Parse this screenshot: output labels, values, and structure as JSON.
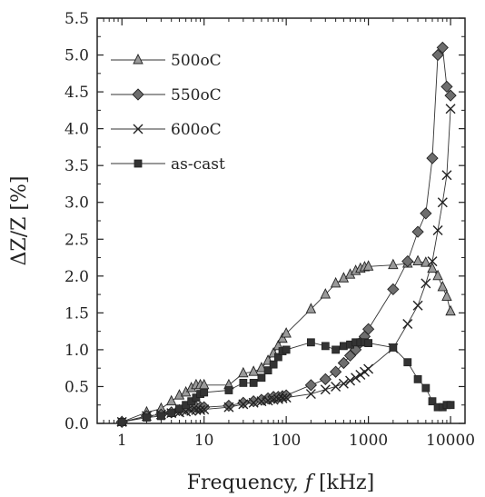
{
  "chart_data": {
    "type": "line",
    "title": "",
    "xlabel": "Frequency, f [kHz]",
    "xlabel_prefix": "Frequency, ",
    "xlabel_var": "f",
    "xlabel_unit": " [kHz]",
    "ylabel": "ΔZ/Z [%]",
    "xscale": "log",
    "xlim": [
      0.5,
      15000
    ],
    "ylim": [
      0.0,
      5.5
    ],
    "xticks": [
      1,
      10,
      100,
      1000,
      10000
    ],
    "xtick_labels": [
      "1",
      "10",
      "100",
      "1000",
      "10000"
    ],
    "yticks": [
      0.0,
      0.5,
      1.0,
      1.5,
      2.0,
      2.5,
      3.0,
      3.5,
      4.0,
      4.5,
      5.0,
      5.5
    ],
    "ytick_labels": [
      "0.0",
      "0.5",
      "1.0",
      "1.5",
      "2.0",
      "2.5",
      "3.0",
      "3.5",
      "4.0",
      "4.5",
      "5.0",
      "5.5"
    ],
    "grid": false,
    "legend_position": "top-left",
    "series": [
      {
        "name": "500°C",
        "legend_label": "500oC",
        "marker": "triangle",
        "x": [
          1,
          2,
          3,
          4,
          5,
          6,
          7,
          8,
          9,
          10,
          20,
          30,
          40,
          50,
          60,
          70,
          80,
          90,
          100,
          200,
          300,
          400,
          500,
          600,
          700,
          800,
          900,
          1000,
          2000,
          3000,
          4000,
          5000,
          6000,
          7000,
          8000,
          9000,
          10000
        ],
        "y": [
          0.02,
          0.15,
          0.2,
          0.3,
          0.38,
          0.42,
          0.48,
          0.52,
          0.52,
          0.52,
          0.52,
          0.68,
          0.7,
          0.75,
          0.85,
          0.95,
          1.05,
          1.15,
          1.22,
          1.55,
          1.75,
          1.9,
          1.97,
          2.02,
          2.07,
          2.1,
          2.12,
          2.13,
          2.15,
          2.17,
          2.2,
          2.18,
          2.1,
          2.0,
          1.85,
          1.72,
          1.52
        ]
      },
      {
        "name": "550°C",
        "legend_label": "550oC",
        "marker": "diamond",
        "x": [
          1,
          2,
          3,
          4,
          5,
          6,
          7,
          8,
          9,
          10,
          20,
          30,
          40,
          50,
          60,
          70,
          80,
          90,
          100,
          200,
          300,
          400,
          500,
          600,
          700,
          800,
          900,
          1000,
          2000,
          3000,
          4000,
          5000,
          6000,
          7000,
          8000,
          9000,
          10000
        ],
        "y": [
          0.02,
          0.1,
          0.12,
          0.15,
          0.18,
          0.2,
          0.22,
          0.22,
          0.22,
          0.22,
          0.24,
          0.28,
          0.3,
          0.32,
          0.34,
          0.36,
          0.36,
          0.37,
          0.38,
          0.52,
          0.6,
          0.7,
          0.82,
          0.92,
          1.0,
          1.1,
          1.18,
          1.28,
          1.82,
          2.2,
          2.6,
          2.85,
          3.6,
          5.0,
          5.1,
          4.57,
          4.45
        ]
      },
      {
        "name": "600°C",
        "legend_label": "600oC",
        "marker": "cross",
        "x": [
          1,
          2,
          3,
          4,
          5,
          6,
          7,
          8,
          9,
          10,
          20,
          30,
          40,
          50,
          60,
          70,
          80,
          90,
          100,
          200,
          300,
          400,
          500,
          600,
          700,
          800,
          900,
          1000,
          2000,
          3000,
          4000,
          5000,
          6000,
          7000,
          8000,
          9000,
          10000
        ],
        "y": [
          0.02,
          0.1,
          0.12,
          0.14,
          0.15,
          0.16,
          0.17,
          0.18,
          0.18,
          0.19,
          0.22,
          0.26,
          0.28,
          0.3,
          0.31,
          0.32,
          0.33,
          0.34,
          0.35,
          0.4,
          0.46,
          0.5,
          0.54,
          0.58,
          0.62,
          0.66,
          0.7,
          0.74,
          1.02,
          1.35,
          1.6,
          1.9,
          2.2,
          2.62,
          3.0,
          3.37,
          4.27
        ]
      },
      {
        "name": "as-cast",
        "legend_label": "as-cast",
        "marker": "square",
        "x": [
          1,
          2,
          3,
          4,
          5,
          6,
          7,
          8,
          9,
          10,
          20,
          30,
          40,
          50,
          60,
          70,
          80,
          90,
          100,
          200,
          300,
          400,
          500,
          600,
          700,
          800,
          900,
          1000,
          2000,
          3000,
          4000,
          5000,
          6000,
          7000,
          8000,
          9000,
          10000
        ],
        "y": [
          0.02,
          0.08,
          0.1,
          0.14,
          0.2,
          0.25,
          0.3,
          0.35,
          0.4,
          0.42,
          0.45,
          0.55,
          0.55,
          0.62,
          0.72,
          0.8,
          0.9,
          0.98,
          1.0,
          1.1,
          1.05,
          1.0,
          1.05,
          1.07,
          1.1,
          1.1,
          1.1,
          1.09,
          1.03,
          0.83,
          0.6,
          0.48,
          0.3,
          0.22,
          0.22,
          0.25,
          0.25
        ]
      }
    ]
  }
}
